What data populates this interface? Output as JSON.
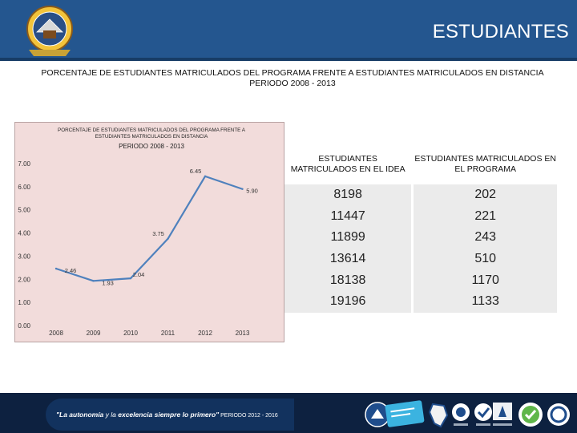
{
  "header": {
    "title": "ESTUDIANTES"
  },
  "page": {
    "title_line1": "PORCENTAJE DE ESTUDIANTES MATRICULADOS DEL PROGRAMA FRENTE A ESTUDIANTES  MATRICULADOS EN DISTANCIA",
    "title_line2": "PERIODO 2008 - 2013"
  },
  "chart_data": {
    "type": "line",
    "title_line1": "PORCENTAJE DE ESTUDIANTES MATRICULADOS DEL PROGRAMA FRENTE A",
    "title_line2": "ESTUDIANTES  MATRICULADOS EN DISTANCIA",
    "subtitle": "PERIODO 2008 - 2013",
    "categories": [
      "2008",
      "2009",
      "2010",
      "2011",
      "2012",
      "2013"
    ],
    "values": [
      2.46,
      1.93,
      2.04,
      3.75,
      6.45,
      5.9
    ],
    "value_labels": [
      "2.46",
      "1.93",
      "2.04",
      "3.75",
      "6.45",
      "5.90"
    ],
    "y_ticks": [
      "0.00",
      "1.00",
      "2.00",
      "3.00",
      "4.00",
      "5.00",
      "6.00",
      "7.00"
    ],
    "ylim": [
      0,
      7
    ],
    "line_color": "#4f81bd",
    "grid": false
  },
  "table": {
    "headers": [
      "ESTUDIANTES MATRICULADOS EN EL IDEA",
      "ESTUDIANTES MATRICULADOS EN EL PROGRAMA"
    ],
    "rows": [
      [
        "8198",
        "202"
      ],
      [
        "11447",
        "221"
      ],
      [
        "11899",
        "243"
      ],
      [
        "13614",
        "510"
      ],
      [
        "18138",
        "1170"
      ],
      [
        "19196",
        "1133"
      ]
    ]
  },
  "footer": {
    "slogan_part1": "\"La autonomía",
    "slogan_part2": " y la ",
    "slogan_part3": "excelencia siempre lo primero\"",
    "slogan_period": " PERIODO 2012 - 2016"
  },
  "colors": {
    "header_bg": "#24568f",
    "chart_bg": "#f2dcdb",
    "table_cell_bg": "#ebebeb",
    "footer_bg": "#0d2140"
  }
}
